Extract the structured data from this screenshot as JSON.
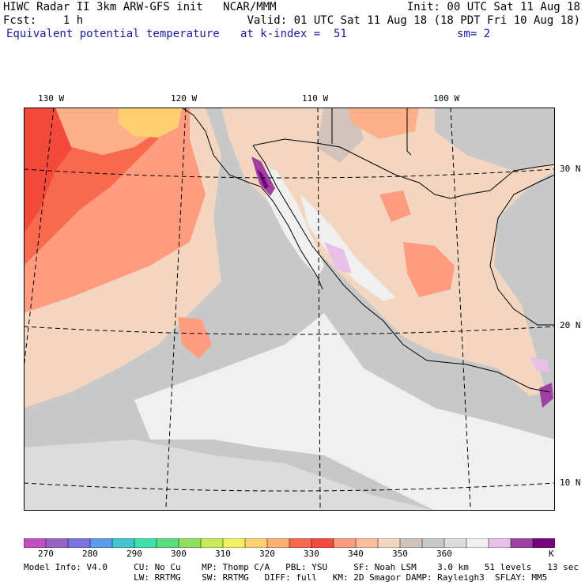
{
  "header": {
    "left1": "HIWC Radar II 3km ARW-GFS init   NCAR/MMM",
    "left2": "Fcst:    1 h",
    "left3": "Equivalent potential temperature",
    "right1": "Init: 00 UTC Sat 11 Aug 18",
    "right2": "Valid: 01 UTC Sat 11 Aug 18 (18 PDT Fri 10 Aug 18)",
    "mid3": "at k-index =  51",
    "right3": "sm= 2"
  },
  "lon_labels": [
    "130 W",
    "120 W",
    "110 W",
    "100 W"
  ],
  "lat_labels": [
    "30 N",
    "20 N",
    "10 N"
  ],
  "colorbar": {
    "colors": [
      "#c050c0",
      "#9a62c6",
      "#7a72e0",
      "#5a9ce8",
      "#40c4d0",
      "#40e0a8",
      "#58e080",
      "#90e060",
      "#c8ec58",
      "#f0f060",
      "#ffd070",
      "#ffb070",
      "#f86a4e",
      "#f44a3c",
      "#ff9c80",
      "#fcc0a0",
      "#f4d6c0",
      "#d2c4bc",
      "#c8c8c8",
      "#dcdcdc",
      "#f0f0f0",
      "#e8c0e8",
      "#a040a0",
      "#780078"
    ],
    "ticks": [
      "270",
      "280",
      "290",
      "300",
      "310",
      "320",
      "330",
      "340",
      "350",
      "360",
      "K"
    ]
  },
  "footer": {
    "line1": "Model Info: V4.0     CU: No Cu    MP: Thomp C/A   PBL: YSU     SF: Noah LSM    3.0 km   51 levels   13 sec",
    "line2": "                     LW: RRTMG    SW: RRTMG   DIFF: full   KM: 2D Smagor DAMP: Rayleigh3  SFLAY: MM5"
  }
}
